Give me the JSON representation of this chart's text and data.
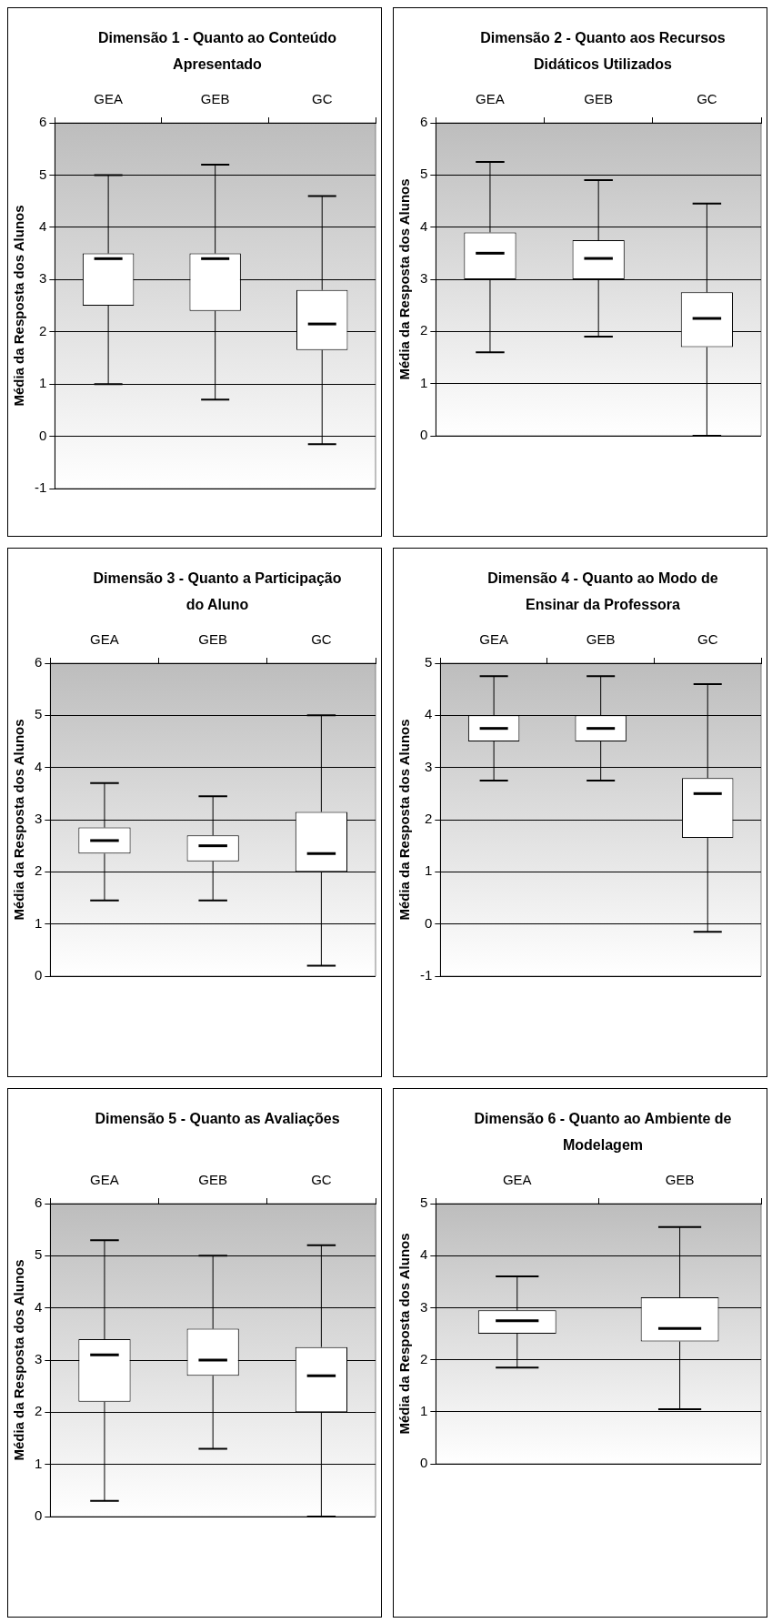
{
  "chart_data": [
    {
      "type": "box",
      "title": "Dimensão 1 - Quanto ao Conteúdo Apresentado",
      "ylabel": "Média da Resposta dos Alunos",
      "categories": [
        "GEA",
        "GEB",
        "GC"
      ],
      "ylim": [
        -1,
        6
      ],
      "yticks": [
        -1,
        0,
        1,
        2,
        3,
        4,
        5,
        6
      ],
      "grid": "y",
      "boxes": [
        {
          "low": 1.0,
          "q1": 2.5,
          "median": 3.4,
          "q3": 3.5,
          "high": 5.0
        },
        {
          "low": 0.7,
          "q1": 2.4,
          "median": 3.4,
          "q3": 3.5,
          "high": 5.2
        },
        {
          "low": -0.15,
          "q1": 1.65,
          "median": 2.15,
          "q3": 2.8,
          "high": 4.6
        }
      ]
    },
    {
      "type": "box",
      "title": "Dimensão 2 - Quanto aos Recursos Didáticos Utilizados",
      "ylabel": "Média da Resposta dos Alunos",
      "categories": [
        "GEA",
        "GEB",
        "GC"
      ],
      "ylim": [
        0,
        6
      ],
      "yticks": [
        0,
        1,
        2,
        3,
        4,
        5,
        6
      ],
      "grid": "y",
      "boxes": [
        {
          "low": 1.6,
          "q1": 3.0,
          "median": 3.5,
          "q3": 3.9,
          "high": 5.25
        },
        {
          "low": 1.9,
          "q1": 3.0,
          "median": 3.4,
          "q3": 3.75,
          "high": 4.9
        },
        {
          "low": 0.0,
          "q1": 1.7,
          "median": 2.25,
          "q3": 2.75,
          "high": 4.45
        }
      ]
    },
    {
      "type": "box",
      "title": "Dimensão 3 - Quanto a Participação do Aluno",
      "ylabel": "Média da Resposta dos Alunos",
      "categories": [
        "GEA",
        "GEB",
        "GC"
      ],
      "ylim": [
        0,
        6
      ],
      "yticks": [
        0,
        1,
        2,
        3,
        4,
        5,
        6
      ],
      "grid": "y",
      "boxes": [
        {
          "low": 1.45,
          "q1": 2.35,
          "median": 2.6,
          "q3": 2.85,
          "high": 3.7
        },
        {
          "low": 1.45,
          "q1": 2.2,
          "median": 2.5,
          "q3": 2.7,
          "high": 3.45
        },
        {
          "low": 0.2,
          "q1": 2.0,
          "median": 2.35,
          "q3": 3.15,
          "high": 5.0
        }
      ]
    },
    {
      "type": "box",
      "title": "Dimensão 4 - Quanto ao Modo de Ensinar da Professora",
      "ylabel": "Média da Resposta dos Alunos",
      "categories": [
        "GEA",
        "GEB",
        "GC"
      ],
      "ylim": [
        -1,
        5
      ],
      "yticks": [
        -1,
        0,
        1,
        2,
        3,
        4,
        5
      ],
      "grid": "y",
      "boxes": [
        {
          "low": 2.75,
          "q1": 3.5,
          "median": 3.75,
          "q3": 4.0,
          "high": 4.75
        },
        {
          "low": 2.75,
          "q1": 3.5,
          "median": 3.75,
          "q3": 4.0,
          "high": 4.75
        },
        {
          "low": -0.15,
          "q1": 1.65,
          "median": 2.5,
          "q3": 2.8,
          "high": 4.6
        }
      ]
    },
    {
      "type": "box",
      "title": "Dimensão 5 - Quanto as Avaliações",
      "ylabel": "Média da Resposta dos Alunos",
      "categories": [
        "GEA",
        "GEB",
        "GC"
      ],
      "ylim": [
        0,
        6
      ],
      "yticks": [
        0,
        1,
        2,
        3,
        4,
        5,
        6
      ],
      "grid": "y",
      "boxes": [
        {
          "low": 0.3,
          "q1": 2.2,
          "median": 3.1,
          "q3": 3.4,
          "high": 5.3
        },
        {
          "low": 1.3,
          "q1": 2.7,
          "median": 3.0,
          "q3": 3.6,
          "high": 5.0
        },
        {
          "low": 0.0,
          "q1": 2.0,
          "median": 2.7,
          "q3": 3.25,
          "high": 5.2
        }
      ]
    },
    {
      "type": "box",
      "title": "Dimensão 6 - Quanto ao Ambiente de Modelagem",
      "ylabel": "Média da Resposta dos Alunos",
      "categories": [
        "GEA",
        "GEB"
      ],
      "ylim": [
        0,
        5
      ],
      "yticks": [
        0,
        1,
        2,
        3,
        4,
        5
      ],
      "grid": "y",
      "boxes": [
        {
          "low": 1.85,
          "q1": 2.5,
          "median": 2.75,
          "q3": 2.95,
          "high": 3.6
        },
        {
          "low": 1.05,
          "q1": 2.35,
          "median": 2.6,
          "q3": 3.2,
          "high": 4.55
        }
      ]
    }
  ]
}
